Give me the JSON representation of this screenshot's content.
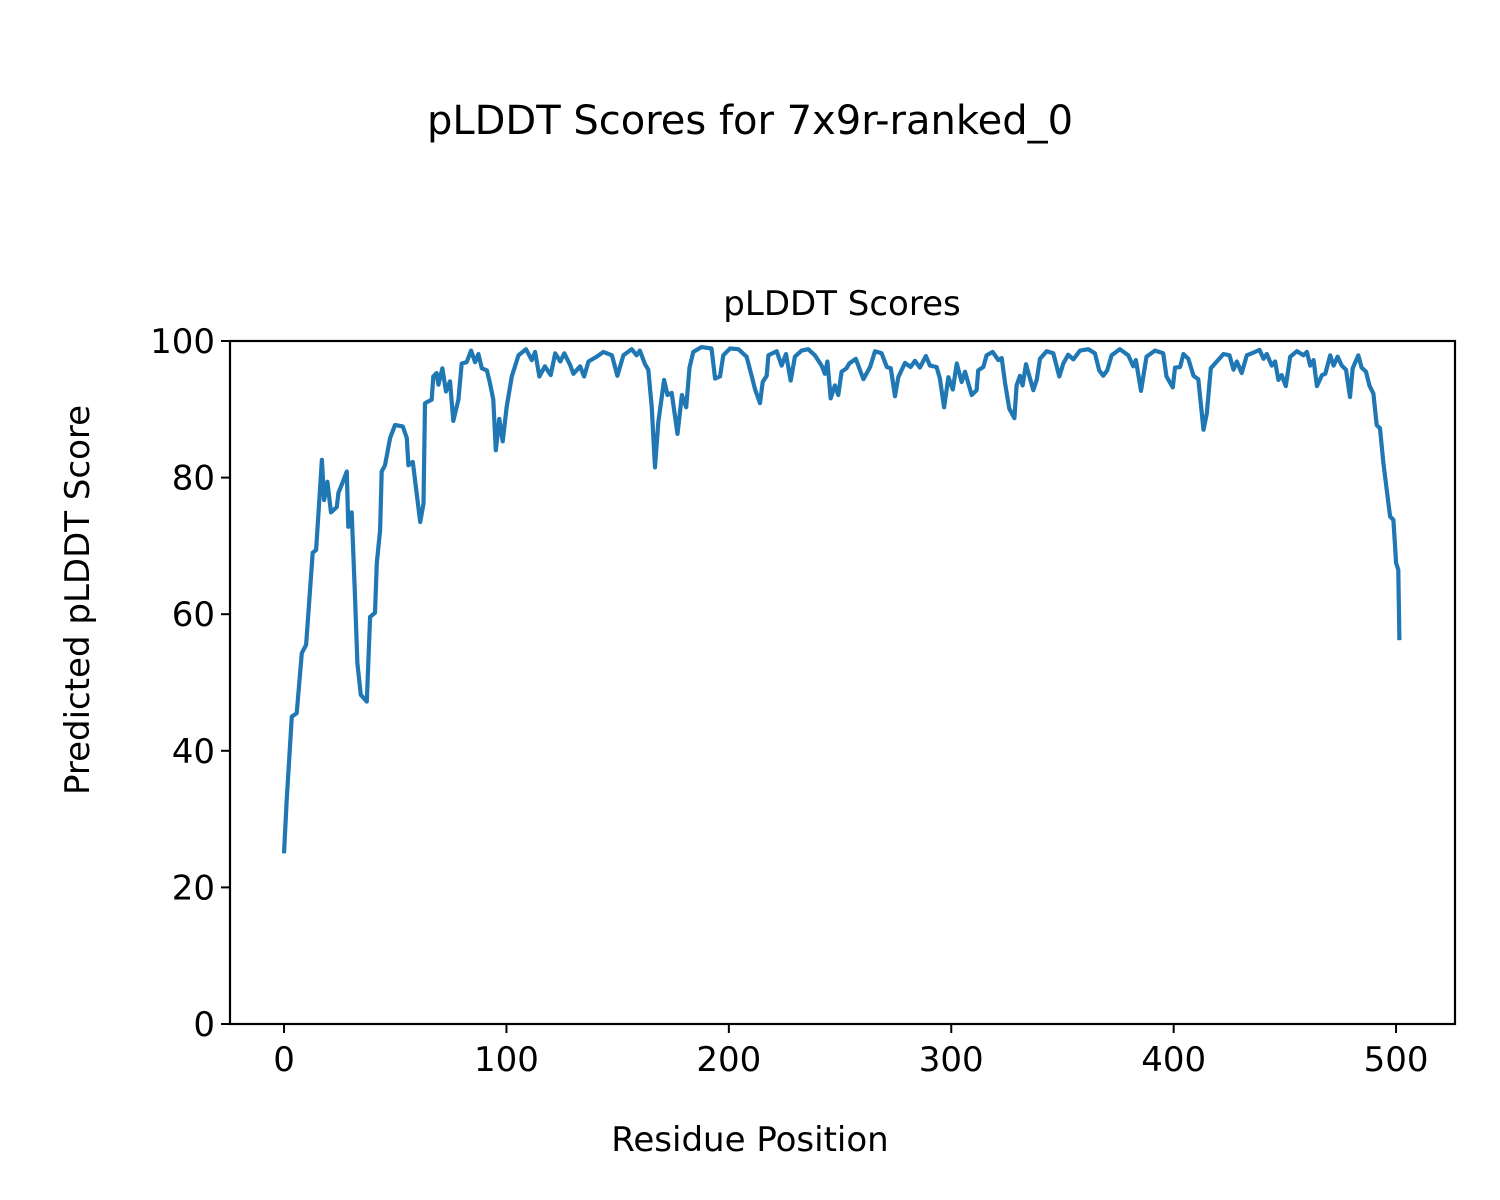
{
  "figure": {
    "suptitle": "pLDDT Scores for 7x9r-ranked_0"
  },
  "chart_data": {
    "type": "line",
    "title": "pLDDT Scores",
    "xlabel": "Residue Position",
    "ylabel": "Predicted pLDDT Score",
    "xlim": [
      -24.3,
      526.5
    ],
    "ylim": [
      0,
      100
    ],
    "xticks": [
      0,
      100,
      200,
      300,
      400,
      500
    ],
    "yticks": [
      0,
      20,
      40,
      60,
      80,
      100
    ],
    "grid": false,
    "legend": "none",
    "line_color": "#1f77b4",
    "points": [
      [
        0,
        25
      ],
      [
        1.2,
        32.8
      ],
      [
        3.5,
        45
      ],
      [
        5.7,
        45.5
      ],
      [
        8,
        54.3
      ],
      [
        9.9,
        55.5
      ],
      [
        12.9,
        69
      ],
      [
        14.4,
        69.4
      ],
      [
        17,
        82.6
      ],
      [
        18,
        76.7
      ],
      [
        19.5,
        79.4
      ],
      [
        21.1,
        74.9
      ],
      [
        23.7,
        75.7
      ],
      [
        24.5,
        77.8
      ],
      [
        25.9,
        78.9
      ],
      [
        28.2,
        80.9
      ],
      [
        28.9,
        72.8
      ],
      [
        30.4,
        74.9
      ],
      [
        31.9,
        62.6
      ],
      [
        33,
        52.8
      ],
      [
        34.5,
        48.2
      ],
      [
        37.2,
        47.2
      ],
      [
        38.7,
        59.6
      ],
      [
        40.9,
        60.2
      ],
      [
        41.7,
        67.5
      ],
      [
        43.2,
        72.3
      ],
      [
        43.9,
        80.9
      ],
      [
        45.4,
        81.8
      ],
      [
        47.7,
        85.8
      ],
      [
        49.9,
        87.7
      ],
      [
        53.4,
        87.5
      ],
      [
        55.2,
        85.8
      ],
      [
        55.9,
        81.8
      ],
      [
        57.9,
        82.3
      ],
      [
        61.2,
        73.5
      ],
      [
        62.7,
        76.2
      ],
      [
        63.4,
        90.9
      ],
      [
        66.4,
        91.4
      ],
      [
        67.1,
        94.8
      ],
      [
        68.6,
        95.3
      ],
      [
        69.4,
        93.6
      ],
      [
        71.2,
        96
      ],
      [
        72.8,
        92.6
      ],
      [
        74.6,
        94.1
      ],
      [
        76.1,
        88.3
      ],
      [
        78.4,
        91.4
      ],
      [
        79.9,
        96.7
      ],
      [
        82.1,
        96.9
      ],
      [
        84.1,
        98.6
      ],
      [
        85.9,
        96.9
      ],
      [
        87.4,
        98.1
      ],
      [
        88.9,
        96
      ],
      [
        91.2,
        95.7
      ],
      [
        92.6,
        93.8
      ],
      [
        94.1,
        91.4
      ],
      [
        95.2,
        84
      ],
      [
        96.8,
        88.6
      ],
      [
        98.3,
        85.3
      ],
      [
        100.1,
        90.4
      ],
      [
        102.4,
        94.8
      ],
      [
        105.4,
        97.9
      ],
      [
        108.8,
        98.8
      ],
      [
        111.4,
        97.2
      ],
      [
        112.9,
        98.4
      ],
      [
        114.8,
        94.8
      ],
      [
        117.3,
        96.3
      ],
      [
        119.9,
        95
      ],
      [
        121.9,
        98.2
      ],
      [
        124.2,
        97
      ],
      [
        126,
        98.2
      ],
      [
        128.6,
        96.5
      ],
      [
        130.1,
        95.2
      ],
      [
        133.1,
        96.3
      ],
      [
        134.9,
        94.8
      ],
      [
        136.9,
        97
      ],
      [
        140.6,
        97.7
      ],
      [
        143.6,
        98.4
      ],
      [
        147.4,
        97.9
      ],
      [
        149.9,
        94.9
      ],
      [
        152.6,
        97.9
      ],
      [
        156.3,
        98.8
      ],
      [
        158.5,
        97.9
      ],
      [
        160,
        98.6
      ],
      [
        162.3,
        96.6
      ],
      [
        163.8,
        95.8
      ],
      [
        165.3,
        90.4
      ],
      [
        166.8,
        81.5
      ],
      [
        168.3,
        88.1
      ],
      [
        170.9,
        94.3
      ],
      [
        172.4,
        92.1
      ],
      [
        174.3,
        92.4
      ],
      [
        176.9,
        86.4
      ],
      [
        178.9,
        92.1
      ],
      [
        180.8,
        90.3
      ],
      [
        182.3,
        96.1
      ],
      [
        184,
        98.4
      ],
      [
        187.7,
        99.1
      ],
      [
        192.2,
        98.9
      ],
      [
        193.8,
        94.5
      ],
      [
        196,
        94.8
      ],
      [
        197.5,
        97.9
      ],
      [
        200.5,
        98.9
      ],
      [
        204.3,
        98.8
      ],
      [
        208,
        97.7
      ],
      [
        210.3,
        94.8
      ],
      [
        211.8,
        92.9
      ],
      [
        214,
        90.9
      ],
      [
        215.2,
        94
      ],
      [
        217,
        94.9
      ],
      [
        217.8,
        97.9
      ],
      [
        221.5,
        98.5
      ],
      [
        223.7,
        96.4
      ],
      [
        225.7,
        98.1
      ],
      [
        227.8,
        94.2
      ],
      [
        229.7,
        97.7
      ],
      [
        232.7,
        98.6
      ],
      [
        235.7,
        98.8
      ],
      [
        238.7,
        97.9
      ],
      [
        241.7,
        96.4
      ],
      [
        243.2,
        95.2
      ],
      [
        244.3,
        97
      ],
      [
        245.8,
        91.6
      ],
      [
        247.7,
        93.5
      ],
      [
        249.2,
        92.1
      ],
      [
        250.7,
        95.5
      ],
      [
        252.9,
        96
      ],
      [
        254.1,
        96.7
      ],
      [
        257.1,
        97.4
      ],
      [
        260.5,
        94.4
      ],
      [
        263.5,
        96.2
      ],
      [
        265.7,
        98.5
      ],
      [
        268.7,
        98.2
      ],
      [
        271,
        96.2
      ],
      [
        272.8,
        96
      ],
      [
        274.7,
        91.9
      ],
      [
        276.2,
        94.7
      ],
      [
        279.2,
        96.8
      ],
      [
        281.7,
        96.2
      ],
      [
        283.7,
        97.1
      ],
      [
        285.9,
        96.1
      ],
      [
        288.6,
        97.8
      ],
      [
        290.4,
        96.4
      ],
      [
        293.4,
        96.2
      ],
      [
        294.9,
        94.5
      ],
      [
        296.8,
        90.3
      ],
      [
        298.7,
        94.7
      ],
      [
        300.7,
        92.9
      ],
      [
        302.5,
        96.7
      ],
      [
        304.7,
        94
      ],
      [
        306.2,
        95.5
      ],
      [
        309.2,
        92.1
      ],
      [
        311.4,
        92.8
      ],
      [
        312.1,
        95.7
      ],
      [
        314.4,
        96.2
      ],
      [
        315.9,
        97.9
      ],
      [
        318.6,
        98.4
      ],
      [
        321.2,
        97.2
      ],
      [
        322.7,
        97.5
      ],
      [
        324.2,
        93.8
      ],
      [
        326.1,
        90.1
      ],
      [
        328.4,
        88.7
      ],
      [
        329.4,
        93.5
      ],
      [
        330.9,
        94.9
      ],
      [
        332.1,
        93.5
      ],
      [
        333.6,
        96.6
      ],
      [
        336.9,
        92.8
      ],
      [
        338.4,
        94.3
      ],
      [
        339.9,
        97.4
      ],
      [
        342.9,
        98.5
      ],
      [
        345.9,
        98.2
      ],
      [
        348.6,
        94.8
      ],
      [
        350.4,
        96.7
      ],
      [
        352.6,
        98
      ],
      [
        354.9,
        97.3
      ],
      [
        357.9,
        98.6
      ],
      [
        361.6,
        98.8
      ],
      [
        364.6,
        98.2
      ],
      [
        366.5,
        95.7
      ],
      [
        368.3,
        94.9
      ],
      [
        370.1,
        95.7
      ],
      [
        372.1,
        97.9
      ],
      [
        375.8,
        98.8
      ],
      [
        379.6,
        97.9
      ],
      [
        381.8,
        96.3
      ],
      [
        383,
        97.2
      ],
      [
        385.3,
        92.7
      ],
      [
        387.8,
        97.7
      ],
      [
        391.6,
        98.6
      ],
      [
        395.3,
        98.2
      ],
      [
        396.8,
        94.8
      ],
      [
        399.6,
        93.2
      ],
      [
        400.6,
        96.1
      ],
      [
        402.9,
        96.2
      ],
      [
        404.4,
        98.1
      ],
      [
        406.6,
        97.4
      ],
      [
        408.9,
        94.9
      ],
      [
        411.1,
        94.4
      ],
      [
        413.4,
        87
      ],
      [
        414.9,
        89.4
      ],
      [
        416.7,
        96
      ],
      [
        419.4,
        97
      ],
      [
        422.4,
        98.1
      ],
      [
        425.1,
        97.9
      ],
      [
        426.9,
        95.8
      ],
      [
        428.4,
        97
      ],
      [
        430.6,
        95.3
      ],
      [
        432.9,
        97.9
      ],
      [
        436.6,
        98.4
      ],
      [
        438.6,
        98.7
      ],
      [
        440.4,
        97.4
      ],
      [
        441.9,
        98.1
      ],
      [
        444.1,
        96.4
      ],
      [
        445.6,
        97
      ],
      [
        447.1,
        94.3
      ],
      [
        448.6,
        95
      ],
      [
        450.4,
        93.4
      ],
      [
        452.4,
        97.7
      ],
      [
        455.4,
        98.5
      ],
      [
        458.4,
        97.9
      ],
      [
        459.9,
        98.4
      ],
      [
        461.4,
        96.4
      ],
      [
        462.9,
        97.2
      ],
      [
        464.4,
        93.4
      ],
      [
        466.7,
        95
      ],
      [
        468.2,
        95.2
      ],
      [
        470.4,
        97.9
      ],
      [
        471.9,
        96.4
      ],
      [
        473.7,
        97.7
      ],
      [
        475.6,
        96.4
      ],
      [
        477.5,
        95.8
      ],
      [
        479.3,
        91.8
      ],
      [
        480.5,
        96
      ],
      [
        483,
        97.9
      ],
      [
        484.5,
        96.1
      ],
      [
        486.5,
        95.5
      ],
      [
        488,
        93.5
      ],
      [
        489.8,
        92.3
      ],
      [
        491.3,
        87.7
      ],
      [
        492.8,
        87.2
      ],
      [
        494.3,
        82.1
      ],
      [
        497.3,
        74.3
      ],
      [
        498.8,
        73.8
      ],
      [
        500,
        67.5
      ],
      [
        501,
        66.5
      ],
      [
        501.5,
        56.2
      ]
    ]
  }
}
